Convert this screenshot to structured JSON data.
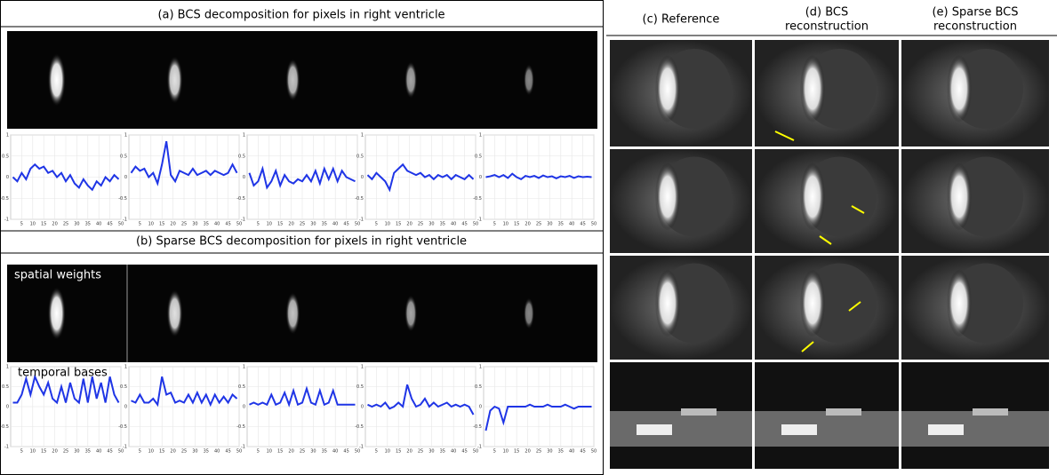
{
  "panel_a": {
    "title": "(a) BCS decomposition for pixels in right ventricle",
    "plots": [
      {
        "values": [
          0,
          -0.1,
          0.1,
          -0.05,
          0.2,
          0.3,
          0.2,
          0.25,
          0.1,
          0.15,
          0,
          0.1,
          -0.1,
          0.05,
          -0.15,
          -0.25,
          -0.05,
          -0.2,
          -0.3,
          -0.1,
          -0.2,
          0,
          -0.1,
          0.05,
          -0.05
        ]
      },
      {
        "values": [
          0.1,
          0.25,
          0.15,
          0.2,
          0,
          0.1,
          -0.15,
          0.3,
          0.85,
          0.05,
          -0.1,
          0.15,
          0.1,
          0.05,
          0.2,
          0.05,
          0.1,
          0.15,
          0.05,
          0.15,
          0.1,
          0.05,
          0.1,
          0.3,
          0.1
        ]
      },
      {
        "values": [
          0.1,
          -0.2,
          -0.1,
          0.2,
          -0.25,
          -0.1,
          0.15,
          -0.2,
          0.05,
          -0.1,
          -0.15,
          -0.05,
          -0.1,
          0.05,
          -0.1,
          0.15,
          -0.15,
          0.2,
          -0.05,
          0.2,
          -0.1,
          0.15,
          0,
          -0.05,
          -0.1
        ]
      },
      {
        "values": [
          0.05,
          -0.05,
          0.1,
          0,
          -0.1,
          -0.3,
          0.1,
          0.2,
          0.3,
          0.15,
          0.1,
          0.05,
          0.1,
          0,
          0.05,
          -0.05,
          0.05,
          0,
          0.05,
          -0.05,
          0.05,
          0,
          -0.05,
          0.05,
          -0.05
        ]
      },
      {
        "values": [
          0,
          0.02,
          0.05,
          0,
          0.05,
          -0.02,
          0.08,
          0,
          -0.05,
          0.03,
          0,
          0.03,
          -0.02,
          0.04,
          0,
          0.02,
          -0.03,
          0.02,
          0,
          0.03,
          -0.02,
          0.02,
          0,
          0.01,
          0
        ]
      }
    ]
  },
  "panel_b": {
    "title": "(b) Sparse BCS decomposition for pixels in right ventricle",
    "spatial_label": "spatial weights",
    "temporal_label": "temporal bases",
    "plots": [
      {
        "values": [
          0.1,
          0.1,
          0.3,
          0.7,
          0.3,
          0.75,
          0.5,
          0.3,
          0.6,
          0.2,
          0.1,
          0.5,
          0.1,
          0.6,
          0.2,
          0.1,
          0.7,
          0.1,
          0.75,
          0.2,
          0.6,
          0.1,
          0.75,
          0.3,
          0.1
        ]
      },
      {
        "values": [
          0.15,
          0.1,
          0.3,
          0.1,
          0.1,
          0.2,
          0.05,
          0.75,
          0.3,
          0.35,
          0.1,
          0.15,
          0.1,
          0.3,
          0.1,
          0.35,
          0.1,
          0.3,
          0.05,
          0.3,
          0.1,
          0.25,
          0.1,
          0.3,
          0.2
        ]
      },
      {
        "values": [
          0.05,
          0.1,
          0.05,
          0.1,
          0.05,
          0.3,
          0.05,
          0.1,
          0.35,
          0.05,
          0.4,
          0.05,
          0.1,
          0.45,
          0.1,
          0.05,
          0.4,
          0.05,
          0.1,
          0.4,
          0.05,
          0.05,
          0.05,
          0.05,
          0.05
        ]
      },
      {
        "values": [
          0.05,
          0,
          0.05,
          0,
          0.1,
          -0.05,
          0,
          0.1,
          0,
          0.55,
          0.2,
          0,
          0.05,
          0.2,
          0,
          0.1,
          0,
          0.05,
          0.1,
          0,
          0.05,
          0,
          0.05,
          0,
          -0.2
        ]
      },
      {
        "values": [
          -0.6,
          -0.1,
          0,
          -0.05,
          -0.4,
          0,
          0,
          0,
          0,
          0,
          0.05,
          0,
          0,
          0,
          0.05,
          0,
          0,
          0,
          0.05,
          0,
          -0.05,
          0,
          0,
          0,
          0
        ]
      }
    ]
  },
  "plot_axes": {
    "x": [
      1,
      3,
      5,
      7,
      9,
      11,
      13,
      15,
      17,
      19,
      21,
      23,
      25,
      27,
      29,
      31,
      33,
      35,
      37,
      39,
      41,
      43,
      45,
      47,
      49
    ],
    "xlim": [
      0,
      50
    ],
    "ylim": [
      -1,
      1
    ],
    "xticks": [
      5,
      10,
      15,
      20,
      25,
      30,
      35,
      40,
      45,
      50
    ],
    "yticks": [
      1,
      0.5,
      0,
      -0.5,
      -1
    ],
    "line_color": "#1f35e6",
    "grid": true
  },
  "panel_c": {
    "headers": [
      [
        "(c) Reference"
      ],
      [
        "(d) BCS",
        "reconstruction"
      ],
      [
        "(e) Sparse BCS",
        "reconstruction"
      ]
    ]
  }
}
